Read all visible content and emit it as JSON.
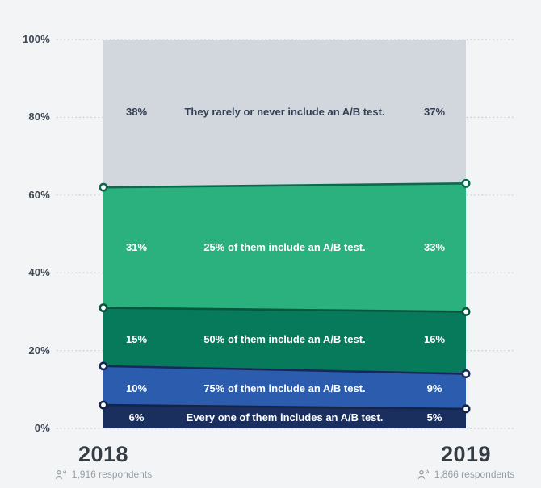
{
  "chart_data": {
    "type": "area",
    "subtype": "stacked-slope-area",
    "title": "",
    "x_categories": [
      "2018",
      "2019"
    ],
    "x_meta": [
      "1,916 respondents",
      "1,866 respondents"
    ],
    "y_ticks": [
      "0%",
      "20%",
      "40%",
      "60%",
      "80%",
      "100%"
    ],
    "ylim": [
      0,
      100
    ],
    "grid": "dotted-horizontal",
    "legend_position": "none",
    "series": [
      {
        "label": "They rarely or never include an A/B test.",
        "values": [
          38,
          37
        ],
        "color": "#d2d7dd",
        "line_color": null,
        "text_color": "#333f52"
      },
      {
        "label": "25% of them include an A/B test.",
        "values": [
          31,
          33
        ],
        "color": "#2bb17d",
        "line_color": "#0b6a4b",
        "text_color": "#ffffff"
      },
      {
        "label": "50% of them include an A/B test.",
        "values": [
          15,
          16
        ],
        "color": "#077a5c",
        "line_color": "#07573f",
        "text_color": "#ffffff"
      },
      {
        "label": "75% of them include an A/B test.",
        "values": [
          10,
          9
        ],
        "color": "#2c5cae",
        "line_color": "#17295c",
        "text_color": "#ffffff"
      },
      {
        "label": "Every one of them includes an A/B test.",
        "values": [
          6,
          5
        ],
        "color": "#1b2f5e",
        "line_color": "#142348",
        "text_color": "#ffffff"
      }
    ]
  },
  "x_axis": {
    "left": {
      "year": "2018",
      "respondents": "1,916 respondents"
    },
    "right": {
      "year": "2019",
      "respondents": "1,866 respondents"
    }
  },
  "colors": {
    "background": "#f3f4f6",
    "gridline": "#c4c9cf",
    "tick_text": "#3e4a57",
    "year_text": "#343c44",
    "meta_text": "#93a0a6"
  },
  "icons": {
    "respondents": "people-icon"
  }
}
